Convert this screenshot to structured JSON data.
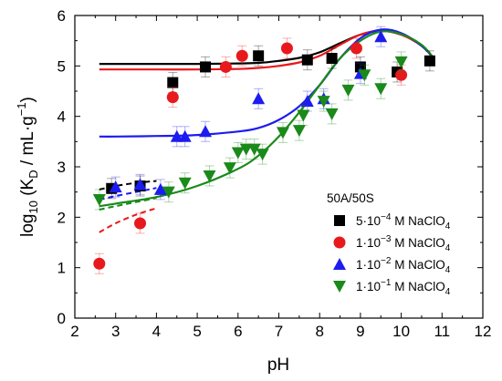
{
  "chart_data": {
    "type": "scatter",
    "xlabel": "pH",
    "ylabel_parts": {
      "prefix": "log",
      "sub10": "10",
      "open": " (K",
      "subD": "D",
      "middle": " / mL·g",
      "sup": "−1",
      "close": ")"
    },
    "xlim": [
      2,
      12
    ],
    "ylim": [
      0,
      6
    ],
    "x_ticks": [
      2,
      3,
      4,
      5,
      6,
      7,
      8,
      9,
      10,
      11,
      12
    ],
    "y_ticks": [
      0,
      1,
      2,
      3,
      4,
      5,
      6
    ],
    "legend_title": "50A/50S",
    "legend_position": "center-right",
    "series": [
      {
        "name": "5·10⁻⁴ M NaClO₄",
        "label_parts": {
          "mant": "5·10",
          "exp": "−4",
          "rest": " M NaClO",
          "sub": "4"
        },
        "color": "#000000",
        "marker": "square",
        "points": [
          [
            2.9,
            2.57
          ],
          [
            3.6,
            2.62
          ],
          [
            4.4,
            4.67
          ],
          [
            5.2,
            4.98
          ],
          [
            6.5,
            5.2
          ],
          [
            7.7,
            5.12
          ],
          [
            8.3,
            5.15
          ],
          [
            9.0,
            4.98
          ],
          [
            9.9,
            4.88
          ],
          [
            10.7,
            5.1
          ]
        ],
        "curve": [
          [
            2.6,
            5.04
          ],
          [
            3,
            5.04
          ],
          [
            4,
            5.04
          ],
          [
            5,
            5.04
          ],
          [
            6,
            5.05
          ],
          [
            6.5,
            5.06
          ],
          [
            7,
            5.1
          ],
          [
            7.5,
            5.16
          ],
          [
            8,
            5.27
          ],
          [
            8.5,
            5.45
          ],
          [
            9,
            5.62
          ],
          [
            9.5,
            5.7
          ],
          [
            10,
            5.62
          ],
          [
            10.5,
            5.4
          ],
          [
            10.8,
            5.15
          ]
        ],
        "dashed": [
          [
            2.6,
            2.55
          ],
          [
            3,
            2.62
          ],
          [
            3.5,
            2.68
          ],
          [
            4,
            2.72
          ]
        ]
      },
      {
        "name": "1·10⁻³ M NaClO₄",
        "label_parts": {
          "mant": "1·10",
          "exp": "−3",
          "rest": " M NaClO",
          "sub": "4"
        },
        "color": "#e8191c",
        "marker": "circle",
        "points": [
          [
            2.6,
            1.08
          ],
          [
            3.6,
            1.88
          ],
          [
            4.4,
            4.38
          ],
          [
            5.7,
            4.98
          ],
          [
            6.1,
            5.2
          ],
          [
            7.2,
            5.35
          ],
          [
            8.9,
            5.35
          ],
          [
            10.0,
            4.82
          ]
        ],
        "curve": [
          [
            2.6,
            4.93
          ],
          [
            3,
            4.93
          ],
          [
            4,
            4.93
          ],
          [
            5,
            4.93
          ],
          [
            6,
            4.94
          ],
          [
            6.5,
            4.96
          ],
          [
            7,
            5.0
          ],
          [
            7.5,
            5.07
          ],
          [
            8,
            5.2
          ],
          [
            8.5,
            5.42
          ],
          [
            9,
            5.62
          ],
          [
            9.5,
            5.7
          ],
          [
            10,
            5.62
          ],
          [
            10.5,
            5.4
          ],
          [
            10.8,
            5.15
          ]
        ],
        "dashed": [
          [
            2.6,
            1.7
          ],
          [
            3,
            1.88
          ],
          [
            3.5,
            2.05
          ],
          [
            4,
            2.18
          ]
        ]
      },
      {
        "name": "1·10⁻² M NaClO₄",
        "label_parts": {
          "mant": "1·10",
          "exp": "−2",
          "rest": " M NaClO",
          "sub": "4"
        },
        "color": "#1c1cf0",
        "marker": "triangle-up",
        "points": [
          [
            3.0,
            2.6
          ],
          [
            3.6,
            2.65
          ],
          [
            4.1,
            2.55
          ],
          [
            4.5,
            3.6
          ],
          [
            4.7,
            3.6
          ],
          [
            5.2,
            3.7
          ],
          [
            6.5,
            4.35
          ],
          [
            7.7,
            4.3
          ],
          [
            8.1,
            4.35
          ],
          [
            9.0,
            4.85
          ],
          [
            9.5,
            5.58
          ]
        ],
        "curve": [
          [
            2.6,
            3.6
          ],
          [
            3,
            3.6
          ],
          [
            4,
            3.61
          ],
          [
            5,
            3.63
          ],
          [
            6,
            3.7
          ],
          [
            6.5,
            3.77
          ],
          [
            7,
            3.93
          ],
          [
            7.5,
            4.2
          ],
          [
            8,
            4.62
          ],
          [
            8.5,
            5.15
          ],
          [
            9,
            5.55
          ],
          [
            9.5,
            5.72
          ],
          [
            10,
            5.65
          ],
          [
            10.5,
            5.4
          ],
          [
            10.8,
            5.15
          ]
        ],
        "dashed": [
          [
            2.6,
            2.35
          ],
          [
            3,
            2.42
          ],
          [
            3.5,
            2.5
          ],
          [
            4,
            2.58
          ]
        ]
      },
      {
        "name": "1·10⁻¹ M NaClO₄",
        "label_parts": {
          "mant": "1·10",
          "exp": "−1",
          "rest": " M NaClO",
          "sub": "4"
        },
        "color": "#1a8a1a",
        "marker": "triangle-down",
        "points": [
          [
            2.6,
            2.35
          ],
          [
            4.3,
            2.5
          ],
          [
            4.7,
            2.68
          ],
          [
            5.3,
            2.82
          ],
          [
            5.8,
            2.98
          ],
          [
            6.0,
            3.28
          ],
          [
            6.2,
            3.35
          ],
          [
            6.4,
            3.35
          ],
          [
            6.6,
            3.25
          ],
          [
            7.1,
            3.68
          ],
          [
            7.5,
            3.72
          ],
          [
            7.6,
            4.02
          ],
          [
            8.1,
            4.3
          ],
          [
            8.3,
            4.05
          ],
          [
            8.7,
            4.52
          ],
          [
            9.1,
            4.82
          ],
          [
            9.5,
            4.55
          ],
          [
            10.0,
            5.08
          ]
        ],
        "curve": [
          [
            2.6,
            2.22
          ],
          [
            3,
            2.27
          ],
          [
            4,
            2.4
          ],
          [
            5,
            2.62
          ],
          [
            6,
            2.96
          ],
          [
            6.5,
            3.22
          ],
          [
            7,
            3.6
          ],
          [
            7.5,
            4.08
          ],
          [
            8,
            4.62
          ],
          [
            8.5,
            5.15
          ],
          [
            9,
            5.5
          ],
          [
            9.5,
            5.68
          ],
          [
            10,
            5.63
          ],
          [
            10.5,
            5.42
          ],
          [
            10.8,
            5.15
          ]
        ],
        "dashed": [
          [
            2.6,
            2.15
          ],
          [
            3,
            2.22
          ],
          [
            3.5,
            2.3
          ],
          [
            4,
            2.38
          ]
        ]
      }
    ]
  }
}
